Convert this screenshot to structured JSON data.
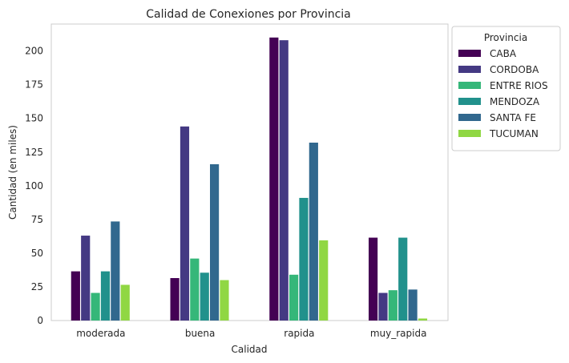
{
  "chart_data": {
    "type": "bar",
    "title": "Calidad de Conexiones por Provincia",
    "xlabel": "Calidad",
    "ylabel": "Cantidad (en miles)",
    "categories": [
      "moderada",
      "buena",
      "rapida",
      "muy_rapida"
    ],
    "ylim": [
      0,
      220
    ],
    "yticks": [
      0,
      25,
      50,
      75,
      100,
      125,
      150,
      175,
      200
    ],
    "grid": false,
    "legend": {
      "title": "Provincia",
      "placement": "outside-top-right"
    },
    "series": [
      {
        "name": "CABA",
        "color": "#440154",
        "values": [
          36.5,
          31.5,
          210,
          61.5
        ]
      },
      {
        "name": "CORDOBA",
        "color": "#443983",
        "values": [
          63,
          144,
          208,
          20.5
        ]
      },
      {
        "name": "ENTRE RIOS",
        "color": "#35b779",
        "values": [
          20.5,
          46,
          34,
          22.5
        ]
      },
      {
        "name": "MENDOZA",
        "color": "#21918c",
        "values": [
          36.5,
          35.5,
          91,
          61.5
        ]
      },
      {
        "name": "SANTA FE",
        "color": "#31688e",
        "values": [
          73.5,
          116,
          132,
          23
        ]
      },
      {
        "name": "TUCUMAN",
        "color": "#90d743",
        "values": [
          26.5,
          30,
          59.5,
          1.5
        ]
      }
    ]
  }
}
